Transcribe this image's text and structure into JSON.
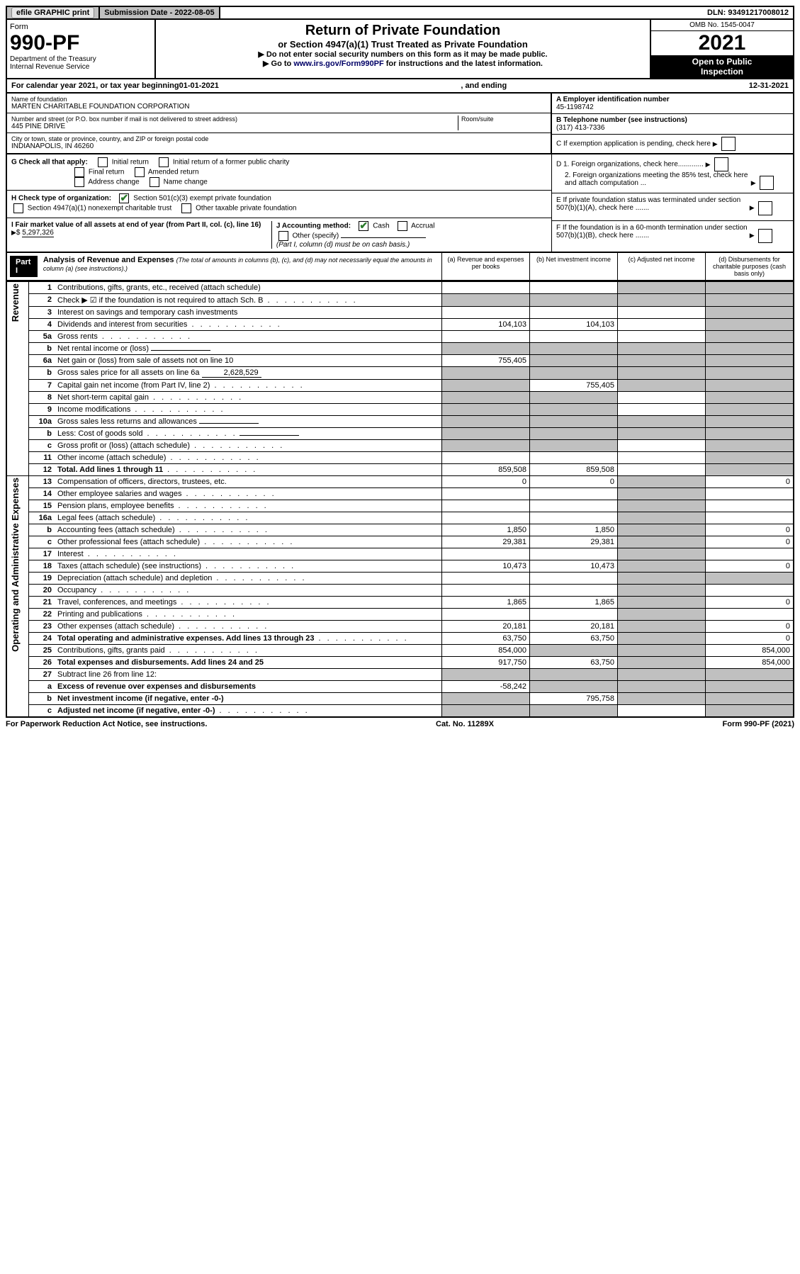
{
  "topbar": {
    "efile": "efile GRAPHIC print",
    "submission_label": "Submission Date - 2022-08-05",
    "dln_label": "DLN: 93491217008012"
  },
  "header": {
    "form_word": "Form",
    "form_num": "990-PF",
    "dept": "Department of the Treasury",
    "irs": "Internal Revenue Service",
    "title": "Return of Private Foundation",
    "subtitle": "or Section 4947(a)(1) Trust Treated as Private Foundation",
    "instr1": "▶ Do not enter social security numbers on this form as it may be made public.",
    "instr2_pre": "▶ Go to ",
    "instr2_link": "www.irs.gov/Form990PF",
    "instr2_post": " for instructions and the latest information.",
    "omb": "OMB No. 1545-0047",
    "year": "2021",
    "open": "Open to Public",
    "inspection": "Inspection"
  },
  "calyear": {
    "pre": "For calendar year 2021, or tax year beginning ",
    "begin": "01-01-2021",
    "mid": ", and ending ",
    "end": "12-31-2021"
  },
  "id": {
    "name_label": "Name of foundation",
    "name": "MARTEN CHARITABLE FOUNDATION CORPORATION",
    "addr_label": "Number and street (or P.O. box number if mail is not delivered to street address)",
    "addr": "445 PINE DRIVE",
    "room_label": "Room/suite",
    "city_label": "City or town, state or province, country, and ZIP or foreign postal code",
    "city": "INDIANAPOLIS, IN  46260",
    "a_label": "A Employer identification number",
    "a_val": "45-1198742",
    "b_label": "B Telephone number (see instructions)",
    "b_val": "(317) 413-7336",
    "c_label": "C If exemption application is pending, check here",
    "d1": "D 1. Foreign organizations, check here.............",
    "d2": "2. Foreign organizations meeting the 85% test, check here and attach computation ...",
    "e_label": "E  If private foundation status was terminated under section 507(b)(1)(A), check here .......",
    "f_label": "F  If the foundation is in a 60-month termination under section 507(b)(1)(B), check here .......",
    "g_label": "G Check all that apply:",
    "g_opts": [
      "Initial return",
      "Initial return of a former public charity",
      "Final return",
      "Amended return",
      "Address change",
      "Name change"
    ],
    "h_label": "H Check type of organization:",
    "h1": "Section 501(c)(3) exempt private foundation",
    "h2": "Section 4947(a)(1) nonexempt charitable trust",
    "h3": "Other taxable private foundation",
    "i_label": "I Fair market value of all assets at end of year (from Part II, col. (c), line 16)",
    "i_val": "5,297,326",
    "j_label": "J Accounting method:",
    "j_cash": "Cash",
    "j_accrual": "Accrual",
    "j_other": "Other (specify)",
    "j_note": "(Part I, column (d) must be on cash basis.)"
  },
  "part1": {
    "label": "Part I",
    "title": "Analysis of Revenue and Expenses",
    "note": "(The total of amounts in columns (b), (c), and (d) may not necessarily equal the amounts in column (a) (see instructions).)",
    "cols": {
      "a": "(a)  Revenue and expenses per books",
      "b": "(b)  Net investment income",
      "c": "(c)  Adjusted net income",
      "d": "(d)  Disbursements for charitable purposes (cash basis only)"
    }
  },
  "side": {
    "revenue": "Revenue",
    "expenses": "Operating and Administrative Expenses"
  },
  "rows": [
    {
      "n": "1",
      "d": "Contributions, gifts, grants, etc., received (attach schedule)",
      "a": "",
      "b": "",
      "c": "s",
      "dd": "s"
    },
    {
      "n": "2",
      "d": "Check ▶ ☑ if the foundation is not required to attach Sch. B",
      "a": "s",
      "b": "s",
      "c": "s",
      "dd": "s",
      "dots": true
    },
    {
      "n": "3",
      "d": "Interest on savings and temporary cash investments",
      "a": "",
      "b": "",
      "c": "",
      "dd": "s"
    },
    {
      "n": "4",
      "d": "Dividends and interest from securities",
      "a": "104,103",
      "b": "104,103",
      "c": "",
      "dd": "s",
      "dots": true
    },
    {
      "n": "5a",
      "d": "Gross rents",
      "a": "",
      "b": "",
      "c": "",
      "dd": "s",
      "dots": true
    },
    {
      "n": "b",
      "d": "Net rental income or (loss)",
      "a": "s",
      "b": "s",
      "c": "s",
      "dd": "s",
      "inline": ""
    },
    {
      "n": "6a",
      "d": "Net gain or (loss) from sale of assets not on line 10",
      "a": "755,405",
      "b": "s",
      "c": "s",
      "dd": "s"
    },
    {
      "n": "b",
      "d": "Gross sales price for all assets on line 6a",
      "a": "s",
      "b": "s",
      "c": "s",
      "dd": "s",
      "inline": "2,628,529"
    },
    {
      "n": "7",
      "d": "Capital gain net income (from Part IV, line 2)",
      "a": "s",
      "b": "755,405",
      "c": "s",
      "dd": "s",
      "dots": true
    },
    {
      "n": "8",
      "d": "Net short-term capital gain",
      "a": "s",
      "b": "s",
      "c": "",
      "dd": "s",
      "dots": true
    },
    {
      "n": "9",
      "d": "Income modifications",
      "a": "s",
      "b": "s",
      "c": "",
      "dd": "s",
      "dots": true
    },
    {
      "n": "10a",
      "d": "Gross sales less returns and allowances",
      "a": "s",
      "b": "s",
      "c": "s",
      "dd": "s",
      "inline": ""
    },
    {
      "n": "b",
      "d": "Less: Cost of goods sold",
      "a": "s",
      "b": "s",
      "c": "s",
      "dd": "s",
      "inline": "",
      "dots": true
    },
    {
      "n": "c",
      "d": "Gross profit or (loss) (attach schedule)",
      "a": "s",
      "b": "s",
      "c": "",
      "dd": "s",
      "dots": true
    },
    {
      "n": "11",
      "d": "Other income (attach schedule)",
      "a": "",
      "b": "",
      "c": "",
      "dd": "s",
      "dots": true
    },
    {
      "n": "12",
      "d": "Total. Add lines 1 through 11",
      "a": "859,508",
      "b": "859,508",
      "c": "",
      "dd": "s",
      "bold": true,
      "dots": true
    },
    {
      "n": "13",
      "d": "Compensation of officers, directors, trustees, etc.",
      "a": "0",
      "b": "0",
      "c": "s",
      "dd": "0"
    },
    {
      "n": "14",
      "d": "Other employee salaries and wages",
      "a": "",
      "b": "",
      "c": "s",
      "dd": "",
      "dots": true
    },
    {
      "n": "15",
      "d": "Pension plans, employee benefits",
      "a": "",
      "b": "",
      "c": "s",
      "dd": "",
      "dots": true
    },
    {
      "n": "16a",
      "d": "Legal fees (attach schedule)",
      "a": "",
      "b": "",
      "c": "s",
      "dd": "",
      "dots": true
    },
    {
      "n": "b",
      "d": "Accounting fees (attach schedule)",
      "a": "1,850",
      "b": "1,850",
      "c": "s",
      "dd": "0",
      "dots": true
    },
    {
      "n": "c",
      "d": "Other professional fees (attach schedule)",
      "a": "29,381",
      "b": "29,381",
      "c": "s",
      "dd": "0",
      "dots": true
    },
    {
      "n": "17",
      "d": "Interest",
      "a": "",
      "b": "",
      "c": "s",
      "dd": "",
      "dots": true
    },
    {
      "n": "18",
      "d": "Taxes (attach schedule) (see instructions)",
      "a": "10,473",
      "b": "10,473",
      "c": "s",
      "dd": "0",
      "dots": true
    },
    {
      "n": "19",
      "d": "Depreciation (attach schedule) and depletion",
      "a": "",
      "b": "",
      "c": "s",
      "dd": "s",
      "dots": true
    },
    {
      "n": "20",
      "d": "Occupancy",
      "a": "",
      "b": "",
      "c": "s",
      "dd": "",
      "dots": true
    },
    {
      "n": "21",
      "d": "Travel, conferences, and meetings",
      "a": "1,865",
      "b": "1,865",
      "c": "s",
      "dd": "0",
      "dots": true
    },
    {
      "n": "22",
      "d": "Printing and publications",
      "a": "",
      "b": "",
      "c": "s",
      "dd": "",
      "dots": true
    },
    {
      "n": "23",
      "d": "Other expenses (attach schedule)",
      "a": "20,181",
      "b": "20,181",
      "c": "s",
      "dd": "0",
      "dots": true
    },
    {
      "n": "24",
      "d": "Total operating and administrative expenses. Add lines 13 through 23",
      "a": "63,750",
      "b": "63,750",
      "c": "s",
      "dd": "0",
      "bold": true,
      "dots": true
    },
    {
      "n": "25",
      "d": "Contributions, gifts, grants paid",
      "a": "854,000",
      "b": "s",
      "c": "s",
      "dd": "854,000",
      "dots": true
    },
    {
      "n": "26",
      "d": "Total expenses and disbursements. Add lines 24 and 25",
      "a": "917,750",
      "b": "63,750",
      "c": "s",
      "dd": "854,000",
      "bold": true
    },
    {
      "n": "27",
      "d": "Subtract line 26 from line 12:",
      "a": "s",
      "b": "s",
      "c": "s",
      "dd": "s"
    },
    {
      "n": "a",
      "d": "Excess of revenue over expenses and disbursements",
      "a": "-58,242",
      "b": "s",
      "c": "s",
      "dd": "s",
      "bold": true
    },
    {
      "n": "b",
      "d": "Net investment income (if negative, enter -0-)",
      "a": "s",
      "b": "795,758",
      "c": "s",
      "dd": "s",
      "bold": true
    },
    {
      "n": "c",
      "d": "Adjusted net income (if negative, enter -0-)",
      "a": "s",
      "b": "s",
      "c": "",
      "dd": "s",
      "bold": true,
      "dots": true
    }
  ],
  "footer": {
    "left": "For Paperwork Reduction Act Notice, see instructions.",
    "mid": "Cat. No. 11289X",
    "right": "Form 990-PF (2021)"
  }
}
